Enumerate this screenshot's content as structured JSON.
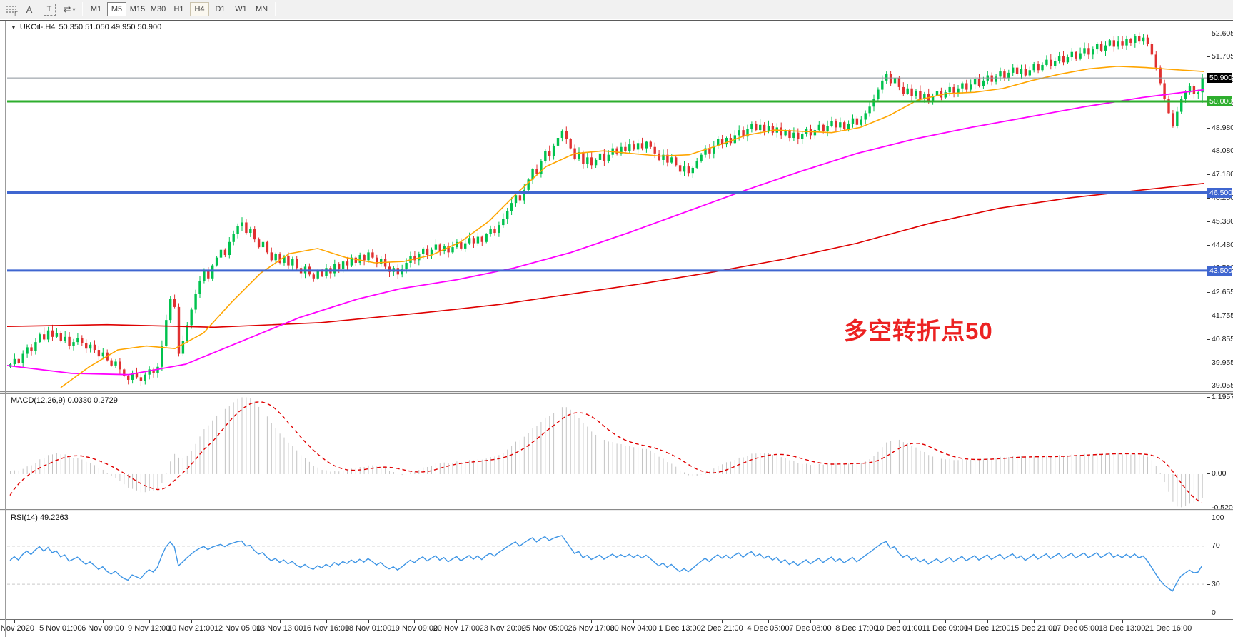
{
  "toolbar": {
    "tools": [
      {
        "id": "grip-indicator-tool",
        "type": "grip",
        "label": "F"
      },
      {
        "id": "text-label-tool",
        "type": "glyph",
        "label": "A"
      },
      {
        "id": "text-box-tool",
        "type": "boxed",
        "label": "T"
      },
      {
        "id": "cycle-lines-tool",
        "type": "glyph",
        "label": "⇄",
        "caret": "▾"
      }
    ],
    "timeframes": [
      {
        "id": "M1",
        "label": "M1",
        "state": "normal"
      },
      {
        "id": "M5",
        "label": "M5",
        "state": "pressed"
      },
      {
        "id": "M15",
        "label": "M15",
        "state": "normal"
      },
      {
        "id": "M30",
        "label": "M30",
        "state": "normal"
      },
      {
        "id": "H1",
        "label": "H1",
        "state": "normal"
      },
      {
        "id": "H4",
        "label": "H4",
        "state": "active"
      },
      {
        "id": "D1",
        "label": "D1",
        "state": "normal"
      },
      {
        "id": "W1",
        "label": "W1",
        "state": "normal"
      },
      {
        "id": "MN",
        "label": "MN",
        "state": "normal"
      }
    ]
  },
  "window": {
    "title": {
      "collapse_icon": "▼",
      "symbol_text": "UKOil-.H4",
      "ohlc_text": "50.350 51.050 49.950 50.900"
    }
  },
  "annotation": {
    "text": "多空转折点50"
  },
  "colors": {
    "bull": "#00c24e",
    "bear": "#e03131",
    "ma_fast": "#ffa500",
    "ma_mid": "#ff00ff",
    "ma_slow": "#de0000",
    "macd_hist": "#c4c4c4",
    "macd_signal": "#e00000",
    "rsi_line": "#3e95e5",
    "level_dash": "#c9c9c9",
    "hline_green": "#2eae2e",
    "hline_blue": "#3f66d0",
    "price_line": "#8a929a",
    "annotation": "#ec2222",
    "badge_current_bg": "#000000"
  },
  "chart_data": {
    "type": "candlestick",
    "symbol": "UKOil-",
    "timeframe": "H4",
    "current_bar": {
      "open": 50.35,
      "high": 51.05,
      "low": 49.95,
      "close": 50.9
    },
    "ylim": [
      38.86,
      53.1
    ],
    "grid": false,
    "closes": [
      39.9,
      40.1,
      39.95,
      40.3,
      40.55,
      40.4,
      40.75,
      41.05,
      40.85,
      41.2,
      40.95,
      41.1,
      40.8,
      40.95,
      40.6,
      40.75,
      40.9,
      40.7,
      40.5,
      40.65,
      40.45,
      40.2,
      40.35,
      40.05,
      39.85,
      40.0,
      39.7,
      39.45,
      39.3,
      39.55,
      39.4,
      39.25,
      39.5,
      39.7,
      39.55,
      39.8,
      40.6,
      41.6,
      42.4,
      42.1,
      40.3,
      40.8,
      41.4,
      42.0,
      42.6,
      43.1,
      43.5,
      43.2,
      43.7,
      44.0,
      44.3,
      44.1,
      44.6,
      44.9,
      45.2,
      45.35,
      44.95,
      45.1,
      44.7,
      44.4,
      44.6,
      44.2,
      43.9,
      44.15,
      43.8,
      44.05,
      43.7,
      43.95,
      43.6,
      43.4,
      43.65,
      43.35,
      43.2,
      43.5,
      43.3,
      43.6,
      43.4,
      43.75,
      43.55,
      43.85,
      43.7,
      44.0,
      43.8,
      44.1,
      43.9,
      44.2,
      44.0,
      43.75,
      43.95,
      43.65,
      43.45,
      43.6,
      43.35,
      43.55,
      43.8,
      44.05,
      43.9,
      44.15,
      44.35,
      44.1,
      44.3,
      44.5,
      44.25,
      44.45,
      44.2,
      44.4,
      44.6,
      44.35,
      44.55,
      44.75,
      44.55,
      44.8,
      44.6,
      44.9,
      45.1,
      44.95,
      45.25,
      45.5,
      45.8,
      46.1,
      46.4,
      46.2,
      46.6,
      47.0,
      47.4,
      47.2,
      47.7,
      48.1,
      47.9,
      48.3,
      48.6,
      48.85,
      48.55,
      48.2,
      47.8,
      48.05,
      47.6,
      47.85,
      47.55,
      47.75,
      48.0,
      47.7,
      47.95,
      48.2,
      48.0,
      48.25,
      48.1,
      48.35,
      48.15,
      48.4,
      48.2,
      48.45,
      48.25,
      48.0,
      47.75,
      47.95,
      47.65,
      47.85,
      47.55,
      47.3,
      47.5,
      47.25,
      47.45,
      47.7,
      47.95,
      48.2,
      48.0,
      48.3,
      48.55,
      48.35,
      48.6,
      48.4,
      48.7,
      48.9,
      48.65,
      48.95,
      49.15,
      48.9,
      49.1,
      48.85,
      49.05,
      48.8,
      49.0,
      48.7,
      48.9,
      48.6,
      48.8,
      48.55,
      48.75,
      48.95,
      48.7,
      48.9,
      49.1,
      48.85,
      49.05,
      49.25,
      49.0,
      49.2,
      48.95,
      49.15,
      49.35,
      49.1,
      49.3,
      49.55,
      49.8,
      50.1,
      50.45,
      50.8,
      51.05,
      50.7,
      50.9,
      50.55,
      50.3,
      50.5,
      50.2,
      50.4,
      50.1,
      50.3,
      50.0,
      50.2,
      50.4,
      50.15,
      50.35,
      50.55,
      50.3,
      50.5,
      50.7,
      50.45,
      50.65,
      50.85,
      50.6,
      50.8,
      51.0,
      50.75,
      50.95,
      51.15,
      50.9,
      51.1,
      51.3,
      51.05,
      51.25,
      51.0,
      51.2,
      51.45,
      51.2,
      51.4,
      51.6,
      51.35,
      51.55,
      51.75,
      51.5,
      51.7,
      51.9,
      51.65,
      51.85,
      52.05,
      51.8,
      52.0,
      52.2,
      51.95,
      52.15,
      52.35,
      52.1,
      52.3,
      52.15,
      52.4,
      52.25,
      52.5,
      52.3,
      52.45,
      52.2,
      51.8,
      51.3,
      50.7,
      50.1,
      49.55,
      49.05,
      49.6,
      50.1,
      50.35,
      50.6,
      50.3,
      50.35,
      50.9
    ],
    "first_open": 39.8,
    "wick_overrides": {
      "8": {
        "high": 41.32
      },
      "31": {
        "low": 39.06
      },
      "55": {
        "high": 45.55
      },
      "131": {
        "high": 48.92
      },
      "208": {
        "high": 51.15
      },
      "267": {
        "high": 52.6
      },
      "276": {
        "low": 48.99
      },
      "283": {
        "high": 51.05,
        "low": 49.95
      }
    },
    "x_labels": [
      "3 Nov 2020",
      "5 Nov 01:00",
      "6 Nov 09:00",
      "9 Nov 12:00",
      "10 Nov 21:00",
      "12 Nov 05:00",
      "13 Nov 13:00",
      "16 Nov 16:00",
      "18 Nov 01:00",
      "19 Nov 09:00",
      "20 Nov 17:00",
      "23 Nov 20:00",
      "25 Nov 05:00",
      "26 Nov 17:00",
      "30 Nov 04:00",
      "1 Dec 13:00",
      "2 Dec 21:00",
      "4 Dec 05:00",
      "7 Dec 08:00",
      "8 Dec 17:00",
      "10 Dec 01:00",
      "11 Dec 09:00",
      "14 Dec 12:00",
      "15 Dec 21:00",
      "17 Dec 05:00",
      "18 Dec 13:00",
      "21 Dec 16:00"
    ],
    "price_tick_labels": [
      "52.605",
      "51.705",
      "50.805",
      "49.905",
      "48.980",
      "48.080",
      "47.180",
      "46.280",
      "45.380",
      "44.480",
      "43.580",
      "42.655",
      "41.755",
      "40.855",
      "39.955",
      "39.055"
    ],
    "price_tick_values": [
      52.605,
      51.705,
      50.805,
      49.905,
      48.98,
      48.08,
      47.18,
      46.28,
      45.38,
      44.48,
      43.58,
      42.655,
      41.755,
      40.855,
      39.955,
      39.055
    ],
    "hlines": [
      {
        "price": 50.9,
        "color_key": "price_line",
        "width": 1,
        "badge": "50.900",
        "badge_bg": "#000000"
      },
      {
        "price": 50.0,
        "color_key": "hline_green",
        "width": 3,
        "badge": "50.000",
        "badge_bg": "#2eae2e"
      },
      {
        "price": 46.5,
        "color_key": "hline_blue",
        "width": 3,
        "badge": "46.500",
        "badge_bg": "#3f66d0"
      },
      {
        "price": 43.5,
        "color_key": "hline_blue",
        "width": 3,
        "badge": "43.500",
        "badge_bg": "#3f66d0"
      }
    ],
    "overlays": {
      "ma_fast": [
        [
          85,
          39.0
        ],
        [
          125,
          39.8
        ],
        [
          165,
          40.45
        ],
        [
          205,
          40.6
        ],
        [
          245,
          40.5
        ],
        [
          285,
          41.1
        ],
        [
          325,
          42.3
        ],
        [
          365,
          43.4
        ],
        [
          405,
          44.15
        ],
        [
          445,
          44.35
        ],
        [
          485,
          44.0
        ],
        [
          525,
          43.8
        ],
        [
          565,
          43.85
        ],
        [
          605,
          44.1
        ],
        [
          645,
          44.6
        ],
        [
          685,
          45.4
        ],
        [
          725,
          46.5
        ],
        [
          765,
          47.5
        ],
        [
          805,
          48.0
        ],
        [
          845,
          48.1
        ],
        [
          885,
          48.0
        ],
        [
          925,
          47.9
        ],
        [
          965,
          47.95
        ],
        [
          1005,
          48.3
        ],
        [
          1045,
          48.7
        ],
        [
          1085,
          48.9
        ],
        [
          1125,
          48.85
        ],
        [
          1165,
          48.8
        ],
        [
          1205,
          49.0
        ],
        [
          1245,
          49.45
        ],
        [
          1285,
          50.05
        ],
        [
          1325,
          50.3
        ],
        [
          1365,
          50.35
        ],
        [
          1405,
          50.5
        ],
        [
          1445,
          50.8
        ],
        [
          1485,
          51.05
        ],
        [
          1525,
          51.25
        ],
        [
          1565,
          51.35
        ],
        [
          1605,
          51.3
        ],
        [
          1645,
          51.22
        ],
        [
          1686,
          51.15
        ]
      ],
      "ma_mid": [
        [
          10,
          39.85
        ],
        [
          100,
          39.55
        ],
        [
          180,
          39.5
        ],
        [
          260,
          39.9
        ],
        [
          340,
          40.8
        ],
        [
          420,
          41.7
        ],
        [
          500,
          42.4
        ],
        [
          560,
          42.8
        ],
        [
          640,
          43.15
        ],
        [
          720,
          43.6
        ],
        [
          800,
          44.2
        ],
        [
          880,
          44.95
        ],
        [
          960,
          45.75
        ],
        [
          1040,
          46.55
        ],
        [
          1120,
          47.3
        ],
        [
          1200,
          48.0
        ],
        [
          1280,
          48.55
        ],
        [
          1360,
          49.0
        ],
        [
          1440,
          49.4
        ],
        [
          1520,
          49.8
        ],
        [
          1600,
          50.15
        ],
        [
          1686,
          50.45
        ]
      ],
      "ma_slow": [
        [
          10,
          41.35
        ],
        [
          150,
          41.42
        ],
        [
          300,
          41.32
        ],
        [
          450,
          41.5
        ],
        [
          600,
          41.9
        ],
        [
          700,
          42.2
        ],
        [
          800,
          42.6
        ],
        [
          900,
          43.0
        ],
        [
          1000,
          43.45
        ],
        [
          1100,
          43.95
        ],
        [
          1200,
          44.55
        ],
        [
          1300,
          45.3
        ],
        [
          1400,
          45.9
        ],
        [
          1500,
          46.3
        ],
        [
          1600,
          46.6
        ],
        [
          1686,
          46.85
        ]
      ]
    },
    "indicators": {
      "macd": {
        "label": "MACD(12,26,9) 0.0330 0.2729",
        "params": [
          12,
          26,
          9
        ],
        "value": 0.033,
        "signal_value": 0.2729,
        "range": [
          -0.5209,
          1.1957
        ],
        "tick_labels": [
          "1.1957",
          "0.00",
          "-0.5209"
        ],
        "tick_values": [
          1.1957,
          0,
          -0.5209
        ],
        "prehistory": [
          -0.95,
          -0.8,
          -0.65,
          -0.5,
          -0.4,
          -0.3,
          -0.2,
          -0.1,
          -0.05
        ]
      },
      "rsi": {
        "label": "RSI(14) 49.2263",
        "period": 14,
        "value": 49.2263,
        "range": [
          0,
          100
        ],
        "levels": [
          70,
          30
        ],
        "tick_labels": [
          "100",
          "70",
          "30",
          "0"
        ],
        "tick_values": [
          100,
          70,
          30,
          0
        ]
      }
    }
  }
}
